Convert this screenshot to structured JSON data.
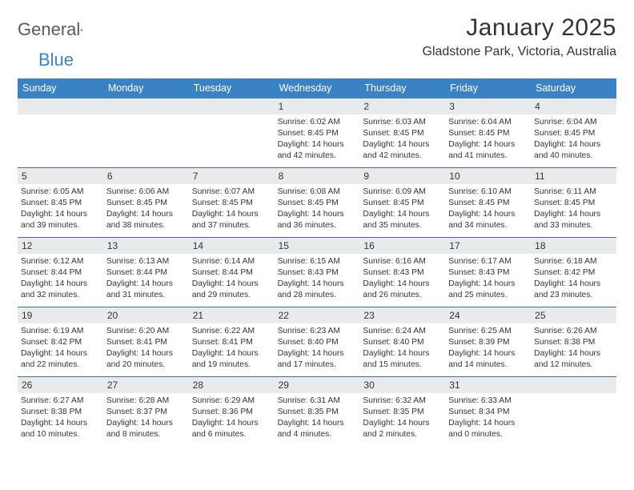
{
  "logo": {
    "text_a": "General",
    "text_b": "Blue"
  },
  "title": "January 2025",
  "location": "Gladstone Park, Victoria, Australia",
  "day_names": [
    "Sunday",
    "Monday",
    "Tuesday",
    "Wednesday",
    "Thursday",
    "Friday",
    "Saturday"
  ],
  "colors": {
    "header_bg": "#3b82c4",
    "header_text": "#ffffff",
    "date_bar_bg": "#e9eaeb",
    "week_border": "#3b6fa5",
    "body_text": "#333333",
    "logo_gray": "#555b60",
    "logo_blue": "#3b82c4",
    "page_bg": "#ffffff"
  },
  "typography": {
    "title_fontsize": 30,
    "location_fontsize": 16,
    "dayname_fontsize": 12.5,
    "date_fontsize": 12,
    "body_fontsize": 10.3
  },
  "layout": {
    "columns": 7,
    "rows": 5,
    "cell_min_height": 86
  },
  "weeks": [
    [
      {
        "date": "",
        "sunrise": "",
        "sunset": "",
        "daylight": ""
      },
      {
        "date": "",
        "sunrise": "",
        "sunset": "",
        "daylight": ""
      },
      {
        "date": "",
        "sunrise": "",
        "sunset": "",
        "daylight": ""
      },
      {
        "date": "1",
        "sunrise": "Sunrise: 6:02 AM",
        "sunset": "Sunset: 8:45 PM",
        "daylight": "Daylight: 14 hours and 42 minutes."
      },
      {
        "date": "2",
        "sunrise": "Sunrise: 6:03 AM",
        "sunset": "Sunset: 8:45 PM",
        "daylight": "Daylight: 14 hours and 42 minutes."
      },
      {
        "date": "3",
        "sunrise": "Sunrise: 6:04 AM",
        "sunset": "Sunset: 8:45 PM",
        "daylight": "Daylight: 14 hours and 41 minutes."
      },
      {
        "date": "4",
        "sunrise": "Sunrise: 6:04 AM",
        "sunset": "Sunset: 8:45 PM",
        "daylight": "Daylight: 14 hours and 40 minutes."
      }
    ],
    [
      {
        "date": "5",
        "sunrise": "Sunrise: 6:05 AM",
        "sunset": "Sunset: 8:45 PM",
        "daylight": "Daylight: 14 hours and 39 minutes."
      },
      {
        "date": "6",
        "sunrise": "Sunrise: 6:06 AM",
        "sunset": "Sunset: 8:45 PM",
        "daylight": "Daylight: 14 hours and 38 minutes."
      },
      {
        "date": "7",
        "sunrise": "Sunrise: 6:07 AM",
        "sunset": "Sunset: 8:45 PM",
        "daylight": "Daylight: 14 hours and 37 minutes."
      },
      {
        "date": "8",
        "sunrise": "Sunrise: 6:08 AM",
        "sunset": "Sunset: 8:45 PM",
        "daylight": "Daylight: 14 hours and 36 minutes."
      },
      {
        "date": "9",
        "sunrise": "Sunrise: 6:09 AM",
        "sunset": "Sunset: 8:45 PM",
        "daylight": "Daylight: 14 hours and 35 minutes."
      },
      {
        "date": "10",
        "sunrise": "Sunrise: 6:10 AM",
        "sunset": "Sunset: 8:45 PM",
        "daylight": "Daylight: 14 hours and 34 minutes."
      },
      {
        "date": "11",
        "sunrise": "Sunrise: 6:11 AM",
        "sunset": "Sunset: 8:45 PM",
        "daylight": "Daylight: 14 hours and 33 minutes."
      }
    ],
    [
      {
        "date": "12",
        "sunrise": "Sunrise: 6:12 AM",
        "sunset": "Sunset: 8:44 PM",
        "daylight": "Daylight: 14 hours and 32 minutes."
      },
      {
        "date": "13",
        "sunrise": "Sunrise: 6:13 AM",
        "sunset": "Sunset: 8:44 PM",
        "daylight": "Daylight: 14 hours and 31 minutes."
      },
      {
        "date": "14",
        "sunrise": "Sunrise: 6:14 AM",
        "sunset": "Sunset: 8:44 PM",
        "daylight": "Daylight: 14 hours and 29 minutes."
      },
      {
        "date": "15",
        "sunrise": "Sunrise: 6:15 AM",
        "sunset": "Sunset: 8:43 PM",
        "daylight": "Daylight: 14 hours and 28 minutes."
      },
      {
        "date": "16",
        "sunrise": "Sunrise: 6:16 AM",
        "sunset": "Sunset: 8:43 PM",
        "daylight": "Daylight: 14 hours and 26 minutes."
      },
      {
        "date": "17",
        "sunrise": "Sunrise: 6:17 AM",
        "sunset": "Sunset: 8:43 PM",
        "daylight": "Daylight: 14 hours and 25 minutes."
      },
      {
        "date": "18",
        "sunrise": "Sunrise: 6:18 AM",
        "sunset": "Sunset: 8:42 PM",
        "daylight": "Daylight: 14 hours and 23 minutes."
      }
    ],
    [
      {
        "date": "19",
        "sunrise": "Sunrise: 6:19 AM",
        "sunset": "Sunset: 8:42 PM",
        "daylight": "Daylight: 14 hours and 22 minutes."
      },
      {
        "date": "20",
        "sunrise": "Sunrise: 6:20 AM",
        "sunset": "Sunset: 8:41 PM",
        "daylight": "Daylight: 14 hours and 20 minutes."
      },
      {
        "date": "21",
        "sunrise": "Sunrise: 6:22 AM",
        "sunset": "Sunset: 8:41 PM",
        "daylight": "Daylight: 14 hours and 19 minutes."
      },
      {
        "date": "22",
        "sunrise": "Sunrise: 6:23 AM",
        "sunset": "Sunset: 8:40 PM",
        "daylight": "Daylight: 14 hours and 17 minutes."
      },
      {
        "date": "23",
        "sunrise": "Sunrise: 6:24 AM",
        "sunset": "Sunset: 8:40 PM",
        "daylight": "Daylight: 14 hours and 15 minutes."
      },
      {
        "date": "24",
        "sunrise": "Sunrise: 6:25 AM",
        "sunset": "Sunset: 8:39 PM",
        "daylight": "Daylight: 14 hours and 14 minutes."
      },
      {
        "date": "25",
        "sunrise": "Sunrise: 6:26 AM",
        "sunset": "Sunset: 8:38 PM",
        "daylight": "Daylight: 14 hours and 12 minutes."
      }
    ],
    [
      {
        "date": "26",
        "sunrise": "Sunrise: 6:27 AM",
        "sunset": "Sunset: 8:38 PM",
        "daylight": "Daylight: 14 hours and 10 minutes."
      },
      {
        "date": "27",
        "sunrise": "Sunrise: 6:28 AM",
        "sunset": "Sunset: 8:37 PM",
        "daylight": "Daylight: 14 hours and 8 minutes."
      },
      {
        "date": "28",
        "sunrise": "Sunrise: 6:29 AM",
        "sunset": "Sunset: 8:36 PM",
        "daylight": "Daylight: 14 hours and 6 minutes."
      },
      {
        "date": "29",
        "sunrise": "Sunrise: 6:31 AM",
        "sunset": "Sunset: 8:35 PM",
        "daylight": "Daylight: 14 hours and 4 minutes."
      },
      {
        "date": "30",
        "sunrise": "Sunrise: 6:32 AM",
        "sunset": "Sunset: 8:35 PM",
        "daylight": "Daylight: 14 hours and 2 minutes."
      },
      {
        "date": "31",
        "sunrise": "Sunrise: 6:33 AM",
        "sunset": "Sunset: 8:34 PM",
        "daylight": "Daylight: 14 hours and 0 minutes."
      },
      {
        "date": "",
        "sunrise": "",
        "sunset": "",
        "daylight": ""
      }
    ]
  ]
}
